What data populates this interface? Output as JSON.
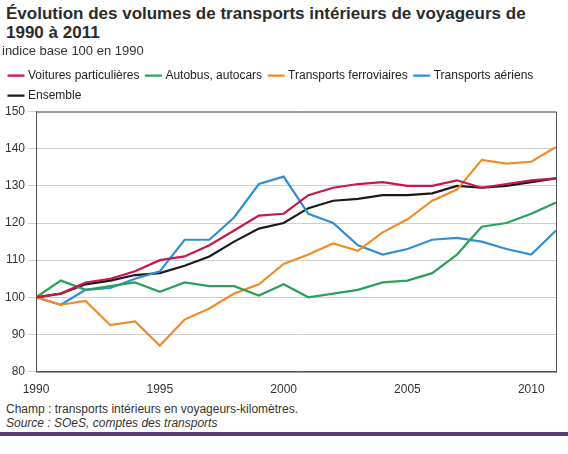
{
  "chart_data": {
    "type": "line",
    "title": "Évolution des volumes de transports intérieurs de voyageurs de 1990 à 2011",
    "subtitle": "indice base 100 en 1990",
    "notes": [
      "Champ : transports intérieurs en voyageurs-kilomètres.",
      "Source : SOeS, comptes des transports"
    ],
    "x": [
      1990,
      1991,
      1992,
      1993,
      1994,
      1995,
      1996,
      1997,
      1998,
      1999,
      2000,
      2001,
      2002,
      2003,
      2004,
      2005,
      2006,
      2007,
      2008,
      2009,
      2010,
      2011
    ],
    "series": [
      {
        "name": "Voitures particulières",
        "color": "#c8174b",
        "values": [
          100,
          101,
          104,
          105,
          107,
          110,
          111,
          114,
          118,
          122,
          122.5,
          127.5,
          129.5,
          130.5,
          131,
          130,
          130,
          131.5,
          129.5,
          130.5,
          131.5,
          132
        ]
      },
      {
        "name": "Autobus, autocars",
        "color": "#2ca05a",
        "values": [
          100,
          104.5,
          102,
          103,
          104,
          101.5,
          104,
          103,
          103,
          100.5,
          103.5,
          100,
          101,
          102,
          104,
          104.5,
          106.5,
          111.5,
          119,
          120,
          122.5,
          125.5
        ]
      },
      {
        "name": "Transports ferroviaires",
        "color": "#f08c28",
        "values": [
          100,
          98,
          99,
          92.5,
          93.5,
          87,
          94,
          97,
          101,
          103.5,
          109,
          111.5,
          114.5,
          112.5,
          117.5,
          121,
          126,
          129,
          137,
          136,
          136.5,
          140.5
        ]
      },
      {
        "name": "Transports aériens",
        "color": "#2f8fd0",
        "values": [
          100,
          98,
          102,
          102.5,
          105,
          107,
          115.5,
          115.5,
          121.5,
          130.5,
          132.5,
          122.5,
          120,
          114,
          111.5,
          113,
          115.5,
          116,
          115,
          113,
          111.5,
          118
        ]
      },
      {
        "name": "Ensemble",
        "color": "#1a1a1a",
        "values": [
          100,
          101,
          103.5,
          104.5,
          106,
          106.5,
          108.5,
          111,
          115,
          118.5,
          120,
          124,
          126,
          126.5,
          127.5,
          127.5,
          128,
          130,
          129.5,
          130,
          131,
          132
        ]
      }
    ],
    "xlim": [
      1990,
      2011
    ],
    "xticks": [
      1990,
      1995,
      2000,
      2005,
      2010
    ],
    "ylim": [
      80,
      150
    ],
    "yticks": [
      80,
      90,
      100,
      110,
      120,
      130,
      140,
      150
    ],
    "grid": true,
    "legend": "top"
  }
}
